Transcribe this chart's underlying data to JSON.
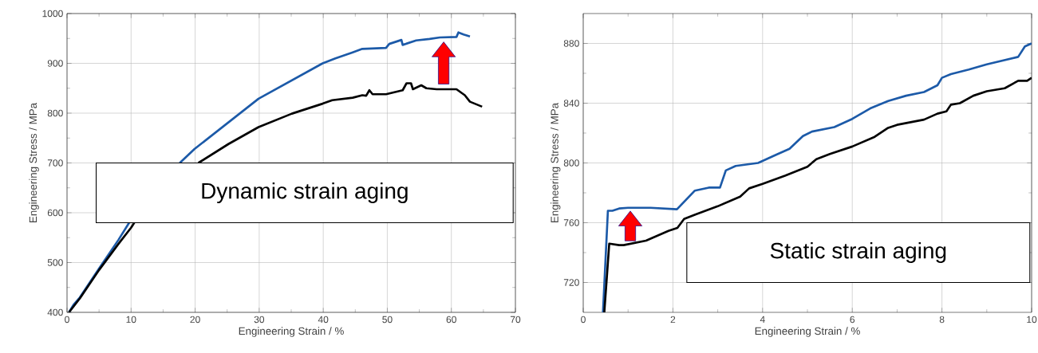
{
  "chart_data": [
    {
      "type": "line",
      "xlabel": "Engineering Strain / %",
      "ylabel": "Engineering Stress / MPa",
      "xlim": [
        0,
        70
      ],
      "ylim": [
        400,
        1000
      ],
      "xticks": [
        0,
        10,
        20,
        30,
        40,
        50,
        60,
        70
      ],
      "yticks": [
        400,
        500,
        600,
        700,
        800,
        900,
        1000
      ],
      "grid": true,
      "marker": "none",
      "line_style": "solid",
      "annotations": [
        "Dynamic strain aging"
      ],
      "series": [
        {
          "color": "#1c5aa8",
          "x": [
            0.3,
            1,
            2,
            5,
            8,
            9.7,
            14,
            17.6,
            19.9,
            29.9,
            39.9,
            41.9,
            44.6,
            46.1,
            49.8,
            50.3,
            52.2,
            52.4,
            54.5,
            56.6,
            58.2,
            60.8,
            61.1,
            61.9,
            62.9
          ],
          "values": [
            400,
            415,
            430,
            488,
            545,
            580,
            null,
            700,
            728,
            829,
            900,
            910,
            922,
            929,
            931,
            939,
            947,
            937,
            946,
            949,
            952,
            953,
            962,
            958,
            954
          ]
        },
        {
          "color": "#000000",
          "x": [
            0.3,
            2,
            5,
            8,
            10,
            10.5,
            15,
            20.5,
            25.2,
            29.9,
            35.1,
            39.9,
            41.4,
            44.6,
            46.1,
            46.7,
            47.2,
            47.7,
            49.8,
            52.4,
            53.0,
            53.7,
            54.0,
            55.3,
            56.1,
            57.7,
            60.8,
            62.1,
            62.9,
            64.8
          ],
          "values": [
            400,
            428,
            485,
            537,
            570,
            580,
            null,
            700,
            738,
            772,
            799,
            819,
            826,
            831,
            836,
            835,
            846,
            838,
            838,
            846,
            860,
            860,
            848,
            856,
            850,
            848,
            848,
            836,
            823,
            813
          ]
        }
      ]
    },
    {
      "type": "line",
      "xlabel": "Engineering Strain / %",
      "ylabel": "Engineering Stress / MPa",
      "xlim": [
        0,
        10
      ],
      "ylim": [
        700,
        900
      ],
      "xticks": [
        0,
        2,
        4,
        6,
        8,
        10
      ],
      "yticks": [
        720,
        760,
        800,
        840,
        880
      ],
      "grid": true,
      "marker": "none",
      "line_style": "solid",
      "annotations": [
        "Static strain aging"
      ],
      "series": [
        {
          "color": "#1c5aa8",
          "x": [
            0.44,
            0.55,
            0.65,
            0.8,
            1.0,
            1.5,
            2.09,
            2.49,
            2.8,
            3.05,
            3.18,
            3.4,
            3.9,
            4.3,
            4.6,
            4.9,
            5.1,
            5.6,
            6.0,
            6.4,
            6.8,
            7.2,
            7.6,
            7.9,
            8.0,
            8.2,
            8.6,
            9.0,
            9.7,
            9.85,
            10
          ],
          "values": [
            700,
            768,
            768,
            769.5,
            770,
            770,
            769,
            781.5,
            783.5,
            783.5,
            795,
            798,
            800,
            805.5,
            809.5,
            818,
            821,
            824,
            829.5,
            836.5,
            841.5,
            845,
            847.5,
            852,
            857,
            859.5,
            862.5,
            866,
            871,
            878,
            880
          ]
        },
        {
          "color": "#000000",
          "x": [
            0.47,
            0.58,
            0.8,
            0.9,
            1.4,
            1.9,
            2.1,
            2.25,
            2.5,
            3.0,
            3.5,
            3.7,
            4.0,
            4.5,
            5.0,
            5.2,
            5.5,
            6.0,
            6.5,
            6.8,
            7.0,
            7.6,
            7.9,
            8.1,
            8.2,
            8.4,
            8.7,
            9.0,
            9.4,
            9.7,
            9.9,
            10
          ],
          "values": [
            700,
            746,
            745,
            745,
            748,
            754.5,
            756.5,
            762.5,
            765.5,
            771,
            777.5,
            783,
            786,
            791.5,
            797.5,
            802.5,
            806,
            811,
            817.5,
            823.5,
            825.5,
            829,
            833,
            834.5,
            839,
            840,
            845,
            848,
            850,
            855,
            855,
            857
          ]
        }
      ]
    }
  ]
}
